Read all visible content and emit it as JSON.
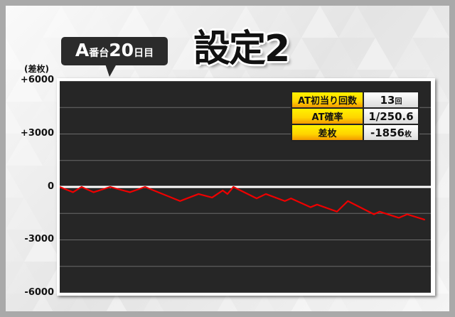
{
  "title": "設定2",
  "bubble": {
    "machine": "A",
    "machine_suffix": "番台",
    "day": "20",
    "day_suffix": "日目"
  },
  "stats": [
    {
      "label": "AT初当り回数",
      "value": "13",
      "unit": "回"
    },
    {
      "label": "AT確率",
      "value": "1/250.6",
      "unit": ""
    },
    {
      "label": "差枚",
      "value": "-1856",
      "unit": "枚"
    }
  ],
  "colors": {
    "line": "#ee0000",
    "plot_bg": "#262626",
    "label_cell": "#ffe000",
    "zero_line": "#ffffff"
  },
  "chart_data": {
    "type": "line",
    "ylabel": "(差枚)",
    "ylim": [
      -6000,
      6000
    ],
    "yticks": [
      "+6000",
      "+3000",
      "0",
      "-3000",
      "-6000"
    ],
    "ytick_values": [
      6000,
      3000,
      0,
      -3000,
      -6000
    ],
    "grid_step": 1500,
    "grid": true,
    "series": [
      {
        "values": [
          0,
          -300,
          0,
          -300,
          0,
          -300,
          0,
          -800,
          -400,
          -600,
          -200,
          -400,
          0,
          -650,
          -400,
          -800,
          -650,
          -1150,
          -1000,
          -1400,
          -800,
          -1550,
          -1400,
          -1750,
          -1550,
          -1856
        ]
      }
    ]
  }
}
